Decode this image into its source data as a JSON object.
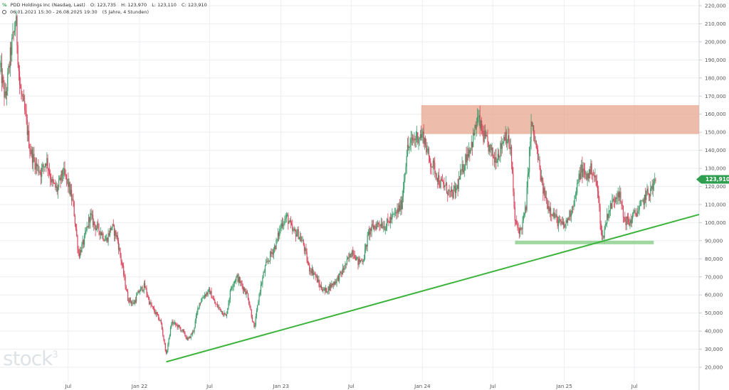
{
  "header": {
    "instrument": "PDD Holdings Inc (Nasdaq, Last)",
    "open": "O: 123,735",
    "high": "H: 123,970",
    "low": "L: 123,110",
    "close": "C: 123,910",
    "range": "06.01.2021 15:30 - 26.08.2025 19:30",
    "interval": "(5 Jahre, 4 Stunden)"
  },
  "watermark": {
    "text": "stock",
    "sup": "3"
  },
  "colors": {
    "up": "#3a9e6a",
    "down": "#d9435a",
    "trendline": "#3cb43c",
    "resistance_zone": "#e8a68e",
    "support_line": "#8fcf8f",
    "price_badge": "#2e9e4f"
  },
  "chart_data": {
    "type": "candlestick",
    "title": "PDD Holdings Inc (Nasdaq, Last)",
    "x_ticks": [
      {
        "date": "2021-07-01",
        "label": "Jul"
      },
      {
        "date": "2022-01-01",
        "label": "Jan 22"
      },
      {
        "date": "2022-07-01",
        "label": "Jul"
      },
      {
        "date": "2023-01-01",
        "label": "Jan 23"
      },
      {
        "date": "2023-07-01",
        "label": "Jul"
      },
      {
        "date": "2024-01-01",
        "label": "Jan 24"
      },
      {
        "date": "2024-07-01",
        "label": "Jul"
      },
      {
        "date": "2025-01-01",
        "label": "Jan 25"
      },
      {
        "date": "2025-07-01",
        "label": "Jul"
      }
    ],
    "y_ticks": [
      "20,000",
      "30,000",
      "40,000",
      "50,000",
      "60,000",
      "70,000",
      "80,000",
      "90,000",
      "100,000",
      "110,000",
      "120,000",
      "130,000",
      "140,000",
      "150,000",
      "160,000",
      "170,000",
      "180,000",
      "190,000",
      "200,000",
      "210,000",
      "220,000"
    ],
    "ylim": [
      20,
      220
    ],
    "xlim": [
      "2021-01-06",
      "2025-12-15"
    ],
    "last_price": 123.91,
    "last_price_label": "123,910",
    "price_path": [
      [
        "2021-01-06",
        186
      ],
      [
        "2021-01-20",
        168
      ],
      [
        "2021-02-03",
        195
      ],
      [
        "2021-02-16",
        212
      ],
      [
        "2021-02-26",
        175
      ],
      [
        "2021-03-10",
        162
      ],
      [
        "2021-03-25",
        140
      ],
      [
        "2021-04-08",
        132
      ],
      [
        "2021-04-22",
        128
      ],
      [
        "2021-05-06",
        135
      ],
      [
        "2021-05-20",
        122
      ],
      [
        "2021-06-03",
        118
      ],
      [
        "2021-06-17",
        128
      ],
      [
        "2021-06-30",
        122
      ],
      [
        "2021-07-14",
        110
      ],
      [
        "2021-07-28",
        82
      ],
      [
        "2021-08-11",
        90
      ],
      [
        "2021-08-26",
        104
      ],
      [
        "2021-09-09",
        98
      ],
      [
        "2021-09-23",
        95
      ],
      [
        "2021-10-07",
        90
      ],
      [
        "2021-10-21",
        98
      ],
      [
        "2021-11-04",
        92
      ],
      [
        "2021-11-18",
        75
      ],
      [
        "2021-12-02",
        58
      ],
      [
        "2021-12-16",
        55
      ],
      [
        "2021-12-31",
        62
      ],
      [
        "2022-01-14",
        65
      ],
      [
        "2022-01-28",
        55
      ],
      [
        "2022-02-11",
        50
      ],
      [
        "2022-02-25",
        45
      ],
      [
        "2022-03-11",
        27
      ],
      [
        "2022-03-25",
        45
      ],
      [
        "2022-04-08",
        43
      ],
      [
        "2022-04-22",
        40
      ],
      [
        "2022-05-06",
        35
      ],
      [
        "2022-05-20",
        40
      ],
      [
        "2022-06-03",
        55
      ],
      [
        "2022-06-17",
        60
      ],
      [
        "2022-07-01",
        62
      ],
      [
        "2022-07-15",
        55
      ],
      [
        "2022-07-29",
        52
      ],
      [
        "2022-08-12",
        48
      ],
      [
        "2022-08-26",
        65
      ],
      [
        "2022-09-09",
        70
      ],
      [
        "2022-09-23",
        65
      ],
      [
        "2022-10-07",
        60
      ],
      [
        "2022-10-24",
        41
      ],
      [
        "2022-11-07",
        62
      ],
      [
        "2022-11-21",
        75
      ],
      [
        "2022-12-05",
        82
      ],
      [
        "2022-12-19",
        88
      ],
      [
        "2023-01-03",
        100
      ],
      [
        "2023-01-17",
        103
      ],
      [
        "2023-01-31",
        95
      ],
      [
        "2023-02-14",
        94
      ],
      [
        "2023-02-28",
        88
      ],
      [
        "2023-03-14",
        75
      ],
      [
        "2023-03-28",
        72
      ],
      [
        "2023-04-11",
        65
      ],
      [
        "2023-04-25",
        62
      ],
      [
        "2023-05-09",
        65
      ],
      [
        "2023-05-23",
        68
      ],
      [
        "2023-06-06",
        72
      ],
      [
        "2023-06-20",
        78
      ],
      [
        "2023-07-05",
        85
      ],
      [
        "2023-07-19",
        78
      ],
      [
        "2023-08-02",
        80
      ],
      [
        "2023-08-16",
        95
      ],
      [
        "2023-08-30",
        98
      ],
      [
        "2023-09-13",
        100
      ],
      [
        "2023-09-27",
        98
      ],
      [
        "2023-10-11",
        102
      ],
      [
        "2023-10-25",
        105
      ],
      [
        "2023-11-08",
        110
      ],
      [
        "2023-11-22",
        140
      ],
      [
        "2023-12-06",
        145
      ],
      [
        "2023-12-20",
        148
      ],
      [
        "2024-01-04",
        148
      ],
      [
        "2024-01-18",
        135
      ],
      [
        "2024-02-01",
        130
      ],
      [
        "2024-02-15",
        122
      ],
      [
        "2024-02-29",
        120
      ],
      [
        "2024-03-14",
        115
      ],
      [
        "2024-03-28",
        118
      ],
      [
        "2024-04-11",
        128
      ],
      [
        "2024-04-25",
        138
      ],
      [
        "2024-05-09",
        145
      ],
      [
        "2024-05-23",
        158
      ],
      [
        "2024-06-06",
        148
      ],
      [
        "2024-06-20",
        142
      ],
      [
        "2024-07-05",
        135
      ],
      [
        "2024-07-19",
        140
      ],
      [
        "2024-08-02",
        150
      ],
      [
        "2024-08-16",
        140
      ],
      [
        "2024-08-27",
        100
      ],
      [
        "2024-09-10",
        95
      ],
      [
        "2024-09-24",
        108
      ],
      [
        "2024-10-08",
        155
      ],
      [
        "2024-10-22",
        140
      ],
      [
        "2024-11-05",
        120
      ],
      [
        "2024-11-19",
        110
      ],
      [
        "2024-12-03",
        105
      ],
      [
        "2024-12-17",
        100
      ],
      [
        "2025-01-02",
        98
      ],
      [
        "2025-01-16",
        105
      ],
      [
        "2025-01-30",
        115
      ],
      [
        "2025-02-13",
        130
      ],
      [
        "2025-02-27",
        125
      ],
      [
        "2025-03-13",
        130
      ],
      [
        "2025-03-27",
        120
      ],
      [
        "2025-04-09",
        90
      ],
      [
        "2025-04-23",
        105
      ],
      [
        "2025-05-07",
        112
      ],
      [
        "2025-05-21",
        118
      ],
      [
        "2025-06-04",
        102
      ],
      [
        "2025-06-18",
        100
      ],
      [
        "2025-07-02",
        105
      ],
      [
        "2025-07-16",
        108
      ],
      [
        "2025-07-30",
        115
      ],
      [
        "2025-08-13",
        118
      ],
      [
        "2025-08-26",
        123.91
      ]
    ],
    "annotations": [
      {
        "type": "zone",
        "from": "2023-12-29",
        "to": "2025-12-15",
        "y_low": 149,
        "y_high": 165
      },
      {
        "type": "hline",
        "from": "2024-08-27",
        "to": "2025-08-20",
        "y": 89
      },
      {
        "type": "trendline",
        "from": [
          "2022-03-11",
          23
        ],
        "to": [
          "2025-12-15",
          104.5
        ]
      }
    ]
  }
}
